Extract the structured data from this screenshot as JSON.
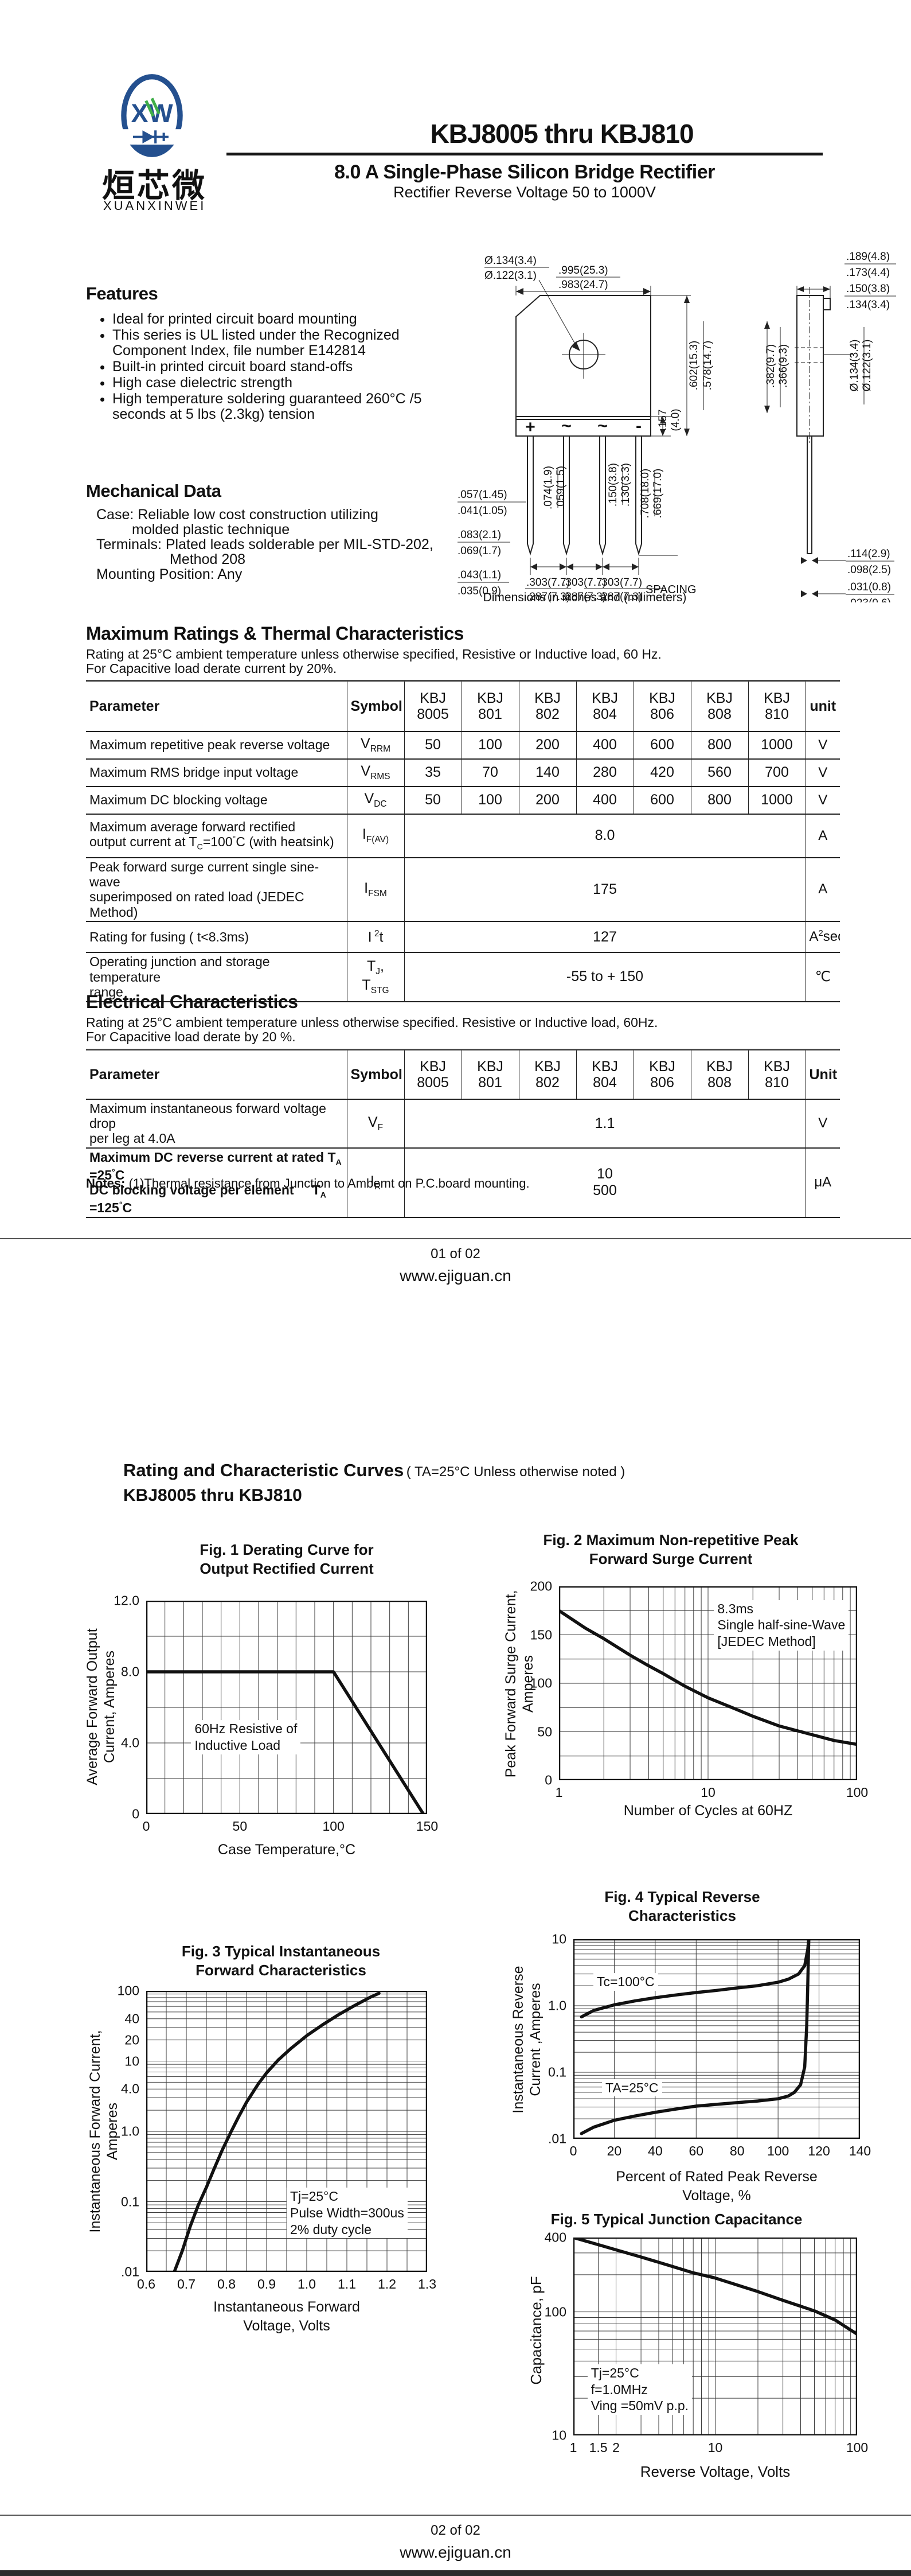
{
  "brand": {
    "logo_monogram": "XW",
    "logo_text_cn": "烜芯微",
    "logo_text_en": "XUANXINWEI",
    "blue": "#24508f",
    "green": "#3fae49"
  },
  "header": {
    "part_range": "KBJ8005 thru KBJ810",
    "title": "8.0 A Single-Phase Silicon Bridge Rectifier",
    "subtitle": "Rectifier Reverse Voltage 50 to 1000V"
  },
  "features": {
    "heading": "Features",
    "items": [
      "Ideal for printed circuit  board mounting",
      "This series is UL listed under the Recognized Component Index, file number E142814",
      "Built-in printed circuit board stand-offs",
      "High case dielectric strength",
      "High temperature soldering guaranteed 260°C /5 seconds at 5 lbs (2.3kg) tension"
    ]
  },
  "mechanical": {
    "heading": "Mechanical Data",
    "lines": [
      {
        "text": "Case: Reliable low cost construction utilizing"
      },
      {
        "text": "molded plastic technique"
      },
      {
        "text": "Terminals: Plated leads solderable per MIL-STD-202,"
      },
      {
        "text": "Method 208"
      },
      {
        "text": "Mounting Position: Any"
      }
    ]
  },
  "pkg": {
    "terminals": [
      "+",
      "~",
      "~",
      "-"
    ],
    "caption": "Dimensions in inches and (milimeters)",
    "dims": [
      "Ø.134(3.4)",
      "Ø.122(3.1)",
      ".995(25.3)",
      ".983(24.7)",
      ".157",
      "(4.0)",
      ".602(15.3)",
      ".578(14.7)",
      ".057(1.45)",
      ".041(1.05)",
      ".083(2.1)",
      ".069(1.7)",
      ".043(1.1)",
      ".035(0.9)",
      ".074(1.9)",
      ".059(1.5)",
      ".150(3.8)",
      ".130(3.3)",
      ".708(18.0)",
      ".669(17.0)",
      ".303(7.7)",
      ".287(7.3)",
      "SPACING",
      ".189(4.8)",
      ".173(4.4)",
      ".150(3.8)",
      ".134(3.4)",
      ".382(9.7)",
      ".366(9.3)",
      "Ø.134(3.4)",
      "Ø.122(3.1)",
      ".114(2.9)",
      ".098(2.5)",
      ".031(0.8)",
      ".023(0.6)"
    ]
  },
  "max_ratings": {
    "heading": "Maximum Ratings & Thermal Characteristics",
    "cond1": "Rating at 25°C ambient temperature unless otherwise specified, Resistive or Inductive load, 60 Hz.",
    "cond2": "For Capacitive load derate current by 20%.",
    "table": {
      "headers": [
        [
          "Parameter"
        ],
        [
          "Symbol"
        ],
        [
          "KBJ",
          "8005"
        ],
        [
          "KBJ",
          "801"
        ],
        [
          "KBJ",
          "802"
        ],
        [
          "KBJ",
          "804"
        ],
        [
          "KBJ",
          "806"
        ],
        [
          "KBJ",
          "808"
        ],
        [
          "KBJ",
          "810"
        ],
        [
          "unit"
        ]
      ],
      "rows": [
        {
          "param": "Maximum repetitive peak reverse voltage",
          "symbol": "V<sub>RRM</sub>",
          "values": [
            "50",
            "100",
            "200",
            "400",
            "600",
            "800",
            "1000"
          ],
          "unit": "V"
        },
        {
          "param": "Maximum RMS bridge input voltage",
          "symbol": "V<sub>RMS</sub>",
          "values": [
            "35",
            "70",
            "140",
            "280",
            "420",
            "560",
            "700"
          ],
          "unit": "V"
        },
        {
          "param": "Maximum DC blocking voltage",
          "symbol": "V<sub>DC</sub>",
          "values": [
            "50",
            "100",
            "200",
            "400",
            "600",
            "800",
            "1000"
          ],
          "unit": "V"
        },
        {
          "param": "Maximum average forward rectified<br>output current at T<sub>C</sub>=100<sup>°</sup>C  (with heatsink)",
          "symbol": "I<sub>F(AV)</sub>",
          "merged": "8.0",
          "unit": "A"
        },
        {
          "param": "Peak forward surge current single sine-wave<br>superimposed on rated load (JEDEC Method)",
          "symbol": "I<sub>FSM</sub>",
          "merged": "175",
          "unit": "A"
        },
        {
          "param": "Rating for fusing ( t&lt;8.3ms)",
          "symbol": "I<sup> 2</sup>t",
          "merged": "127",
          "unit": "A<sup>2</sup>sec"
        },
        {
          "param": "Operating junction and storage temperature<br>range",
          "symbol": "T<sub>J</sub>,<br>T<sub>STG</sub>",
          "merged": "-55 to + 150",
          "unit": "℃"
        }
      ]
    }
  },
  "electrical": {
    "heading": "Electrical Characteristics",
    "cond1": "Rating at 25°C ambient temperature unless otherwise specified. Resistive or Inductive load, 60Hz.",
    "cond2": "For Capacitive load derate by 20 %.",
    "table": {
      "headers": [
        [
          "Parameter"
        ],
        [
          "Symbol"
        ],
        [
          "KBJ",
          "8005"
        ],
        [
          "KBJ",
          "801"
        ],
        [
          "KBJ",
          "802"
        ],
        [
          "KBJ",
          "804"
        ],
        [
          "KBJ",
          "806"
        ],
        [
          "KBJ",
          "808"
        ],
        [
          "KBJ",
          "810"
        ],
        [
          "Unit"
        ]
      ],
      "rows": [
        {
          "param": "Maximum instantaneous forward voltage drop<br>per leg at 4.0A",
          "symbol": "V<sub>F</sub>",
          "merged": "1.1",
          "unit": "V"
        },
        {
          "param": "Maximum DC reverse current at rated T<sub>A</sub> =25<sup>°</sup>C<br>DC blocking voltage per element&nbsp;&nbsp;&nbsp;&nbsp;&nbsp;T<sub>A</sub> =125<sup>°</sup>C",
          "bold": true,
          "symbol": "I<sub>R</sub>",
          "merged": "10<br>500",
          "unit": "μA"
        }
      ]
    }
  },
  "notes": {
    "label": "Notes:",
    "text": " (1)Thermal resistance from Junction to Ambemt on P.C.board mounting."
  },
  "footer1": {
    "page": "01 of 02",
    "site": "www.ejiguan.cn"
  },
  "page2": {
    "heading_bold": "Rating and  Characteristic Curves",
    "heading_note": "( TA=25°C Unless otherwise noted )",
    "heading_part": "KBJ8005  thru  KBJ810"
  },
  "footer2": {
    "page": "02 of 02",
    "site": "www.ejiguan.cn"
  },
  "chart_data": [
    {
      "id": "fig1",
      "type": "line",
      "title": "Fig. 1 Derating Curve for\nOutput Rectified Current",
      "xlabel": "Case Temperature,°C",
      "ylabel": "Average Forward Output\nCurrent, Amperes",
      "x": {
        "scale": "linear",
        "min": 0,
        "max": 150,
        "grid": 10,
        "ticks": [
          [
            0,
            "0"
          ],
          [
            50,
            "50"
          ],
          [
            100,
            "100"
          ],
          [
            150,
            "150"
          ]
        ]
      },
      "y": {
        "scale": "linear",
        "min": 0,
        "max": 12,
        "grid": 2,
        "ticks": [
          [
            0,
            "0"
          ],
          [
            4,
            "4.0"
          ],
          [
            8,
            "8.0"
          ],
          [
            12,
            "12.0"
          ]
        ]
      },
      "series": [
        {
          "name": "derating-curve",
          "points": [
            [
              0,
              8
            ],
            [
              100,
              8
            ],
            [
              148,
              0
            ]
          ]
        }
      ],
      "annotations": [
        {
          "text": "60Hz Resistive of\nInductive Load",
          "px": 0.16,
          "py": 0.56
        }
      ]
    },
    {
      "id": "fig2",
      "type": "line",
      "title": "Fig. 2 Maximum Non-repetitive Peak\nForward Surge Current",
      "xlabel": "Number of Cycles at 60HZ",
      "ylabel": "Peak Forward Surge Current,\nAmperes",
      "x": {
        "scale": "log",
        "min": 1,
        "max": 100,
        "ticks": [
          [
            1,
            "1"
          ],
          [
            10,
            "10"
          ],
          [
            100,
            "100"
          ]
        ]
      },
      "y": {
        "scale": "linear",
        "min": 0,
        "max": 200,
        "grid": 25,
        "ticks": [
          [
            0,
            "0"
          ],
          [
            50,
            "50"
          ],
          [
            100,
            "100"
          ],
          [
            150,
            "150"
          ],
          [
            200,
            "200"
          ]
        ]
      },
      "series": [
        {
          "name": "surge-current",
          "points": [
            [
              1,
              175
            ],
            [
              1.5,
              157
            ],
            [
              2,
              146
            ],
            [
              3,
              129
            ],
            [
              4,
              118
            ],
            [
              5,
              110
            ],
            [
              7,
              97
            ],
            [
              10,
              85
            ],
            [
              15,
              74
            ],
            [
              20,
              66
            ],
            [
              30,
              56
            ],
            [
              50,
              47
            ],
            [
              70,
              41
            ],
            [
              100,
              37
            ]
          ]
        }
      ],
      "annotations": [
        {
          "text": "8.3ms\nSingle half-sine-Wave\n[JEDEC Method]",
          "px": 0.52,
          "py": 0.07
        }
      ]
    },
    {
      "id": "fig3",
      "type": "line",
      "title": "Fig. 3 Typical Instantaneous\nForward Characteristics",
      "xlabel": "Instantaneous Forward\nVoltage, Volts",
      "ylabel": "Instantaneous Forward Current,\nAmperes",
      "x": {
        "scale": "linear",
        "min": 0.6,
        "max": 1.3,
        "grid": 0.05,
        "ticks": [
          [
            0.6,
            "0.6"
          ],
          [
            0.7,
            "0.7"
          ],
          [
            0.8,
            "0.8"
          ],
          [
            0.9,
            "0.9"
          ],
          [
            1.0,
            "1.0"
          ],
          [
            1.1,
            "1.1"
          ],
          [
            1.2,
            "1.2"
          ],
          [
            1.3,
            "1.3"
          ]
        ]
      },
      "y": {
        "scale": "log",
        "min": 0.01,
        "max": 100,
        "ticks": [
          [
            0.01,
            ".01"
          ],
          [
            0.1,
            "0.1"
          ],
          [
            1,
            "1.0"
          ],
          [
            4,
            "4.0"
          ],
          [
            10,
            "10"
          ],
          [
            20,
            "20"
          ],
          [
            40,
            "40"
          ],
          [
            100,
            "100"
          ]
        ]
      },
      "series": [
        {
          "name": "forward-characteristic",
          "points": [
            [
              0.67,
              0.01
            ],
            [
              0.69,
              0.02
            ],
            [
              0.71,
              0.045
            ],
            [
              0.73,
              0.09
            ],
            [
              0.75,
              0.16
            ],
            [
              0.77,
              0.3
            ],
            [
              0.79,
              0.55
            ],
            [
              0.81,
              0.95
            ],
            [
              0.83,
              1.6
            ],
            [
              0.85,
              2.6
            ],
            [
              0.88,
              4.8
            ],
            [
              0.9,
              6.8
            ],
            [
              0.93,
              10.5
            ],
            [
              0.96,
              15
            ],
            [
              1.0,
              23
            ],
            [
              1.04,
              33
            ],
            [
              1.08,
              46
            ],
            [
              1.12,
              62
            ],
            [
              1.16,
              82
            ],
            [
              1.18,
              92
            ]
          ]
        }
      ],
      "annotations": [
        {
          "text": "Tj=25°C\nPulse Width=300us\n2% duty cycle",
          "px": 0.5,
          "py": 0.7
        }
      ]
    },
    {
      "id": "fig4",
      "type": "line",
      "title": "Fig. 4 Typical Reverse\nCharacteristics",
      "xlabel": "Percent of Rated Peak Reverse\nVoltage, %",
      "ylabel": "Instantaneous Reverse\nCurrent ,Amperes",
      "x": {
        "scale": "linear",
        "min": 0,
        "max": 140,
        "grid": 20,
        "ticks": [
          [
            0,
            "0"
          ],
          [
            20,
            "20"
          ],
          [
            40,
            "40"
          ],
          [
            60,
            "60"
          ],
          [
            80,
            "80"
          ],
          [
            100,
            "100"
          ],
          [
            120,
            "120"
          ],
          [
            140,
            "140"
          ]
        ]
      },
      "y": {
        "scale": "log",
        "min": 0.01,
        "max": 10,
        "ticks": [
          [
            0.01,
            ".01"
          ],
          [
            0.1,
            "0.1"
          ],
          [
            1,
            "1.0"
          ],
          [
            10,
            "10"
          ]
        ]
      },
      "series": [
        {
          "name": "Tc=100C",
          "points": [
            [
              4,
              0.68
            ],
            [
              10,
              0.85
            ],
            [
              20,
              1.03
            ],
            [
              30,
              1.18
            ],
            [
              40,
              1.32
            ],
            [
              50,
              1.45
            ],
            [
              60,
              1.58
            ],
            [
              70,
              1.7
            ],
            [
              80,
              1.85
            ],
            [
              90,
              2.0
            ],
            [
              100,
              2.25
            ],
            [
              105,
              2.5
            ],
            [
              110,
              3.0
            ],
            [
              113,
              4.0
            ],
            [
              114.5,
              7
            ],
            [
              115,
              10
            ]
          ]
        },
        {
          "name": "TA=25C",
          "points": [
            [
              4,
              0.012
            ],
            [
              10,
              0.015
            ],
            [
              20,
              0.019
            ],
            [
              30,
              0.022
            ],
            [
              40,
              0.025
            ],
            [
              50,
              0.028
            ],
            [
              60,
              0.031
            ],
            [
              70,
              0.033
            ],
            [
              80,
              0.035
            ],
            [
              90,
              0.037
            ],
            [
              100,
              0.04
            ],
            [
              105,
              0.044
            ],
            [
              108,
              0.05
            ],
            [
              111,
              0.065
            ],
            [
              113,
              0.12
            ],
            [
              114,
              0.5
            ],
            [
              114.5,
              2
            ],
            [
              115,
              10
            ]
          ]
        }
      ],
      "annotations": [
        {
          "text": "Tc=100°C",
          "px": 0.07,
          "py": 0.17
        },
        {
          "text": "TA=25°C",
          "px": 0.1,
          "py": 0.7
        }
      ]
    },
    {
      "id": "fig5",
      "type": "line",
      "title": "Fig. 5 Typical Junction Capacitance",
      "xlabel": "Reverse Voltage, Volts",
      "ylabel": "Capacitance, pF",
      "x": {
        "scale": "log",
        "min": 1,
        "max": 100,
        "extra_grid": [
          1.5
        ],
        "ticks": [
          [
            1,
            "1"
          ],
          [
            1.5,
            "1.5"
          ],
          [
            2,
            "2"
          ],
          [
            10,
            "10"
          ],
          [
            100,
            "100"
          ]
        ]
      },
      "y": {
        "scale": "log",
        "min": 10,
        "max": 400,
        "ticks": [
          [
            10,
            "10"
          ],
          [
            100,
            "100"
          ],
          [
            400,
            "400"
          ]
        ]
      },
      "series": [
        {
          "name": "junction-capacitance",
          "points": [
            [
              1,
              400
            ],
            [
              1.5,
              350
            ],
            [
              2,
              318
            ],
            [
              3,
              278
            ],
            [
              4,
              252
            ],
            [
              5,
              233
            ],
            [
              7,
              207
            ],
            [
              10,
              188
            ],
            [
              15,
              162
            ],
            [
              20,
              146
            ],
            [
              30,
              124
            ],
            [
              50,
              102
            ],
            [
              70,
              86
            ],
            [
              100,
              66
            ]
          ]
        }
      ],
      "annotations": [
        {
          "text": "Tj=25°C\nf=1.0MHz\nVing =50mV p.p.",
          "px": 0.05,
          "py": 0.64
        }
      ]
    }
  ]
}
